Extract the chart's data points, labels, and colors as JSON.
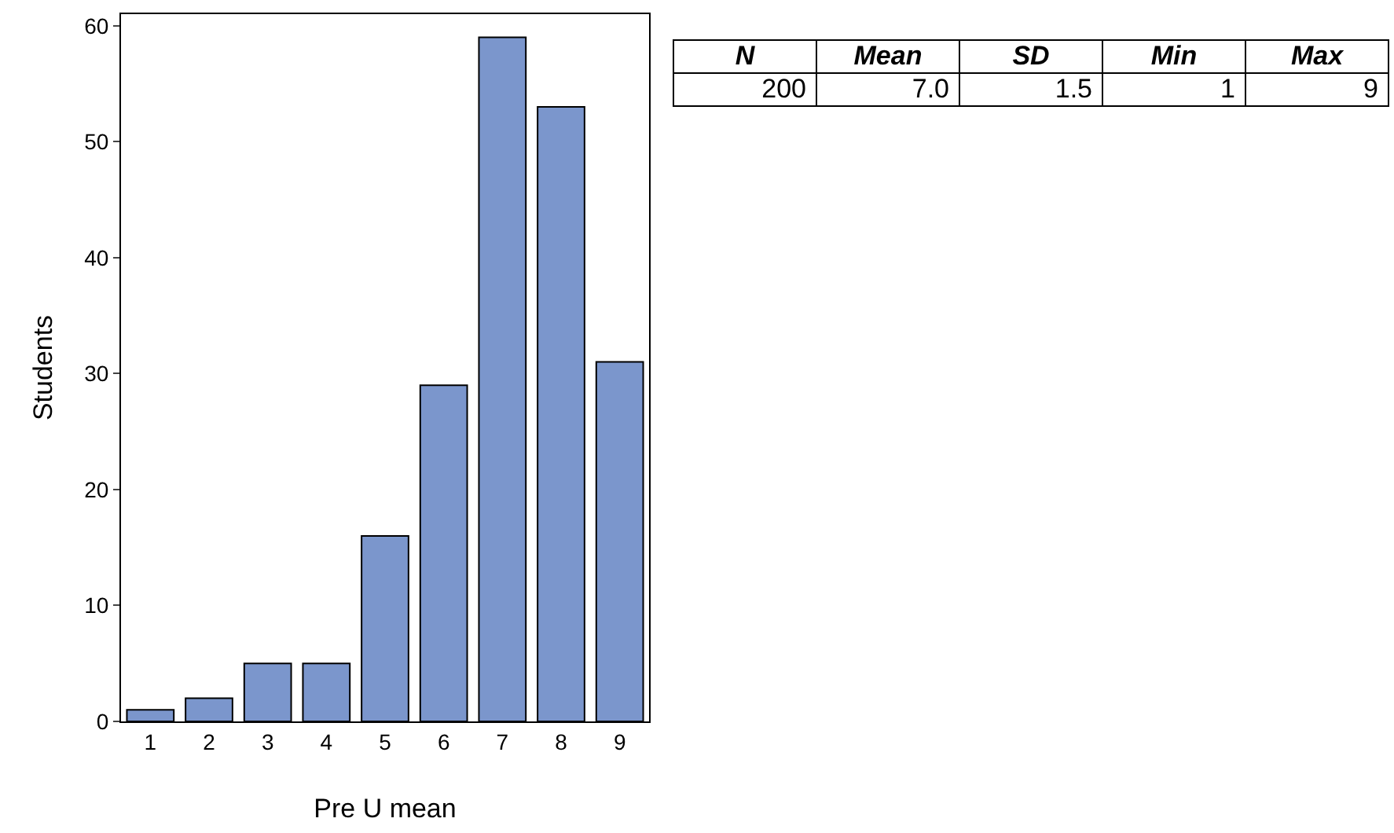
{
  "chart_data": [
    {
      "type": "bar",
      "xlabel": "Pre U mean",
      "ylabel": "Students",
      "categories": [
        "1",
        "2",
        "3",
        "4",
        "5",
        "6",
        "7",
        "8",
        "9"
      ],
      "values": [
        1,
        2,
        5,
        5,
        16,
        29,
        59,
        53,
        31
      ],
      "color": "#7b96cc",
      "ylim": [
        0,
        61
      ],
      "yticks": [
        0,
        10,
        20,
        30,
        40,
        50,
        60
      ],
      "grid": false
    },
    {
      "type": "other",
      "categories": [
        "N",
        "Mean",
        "SD",
        "Min",
        "Max"
      ],
      "value_labels": [
        "200",
        "7.0",
        "1.5",
        "1",
        "9"
      ]
    }
  ]
}
